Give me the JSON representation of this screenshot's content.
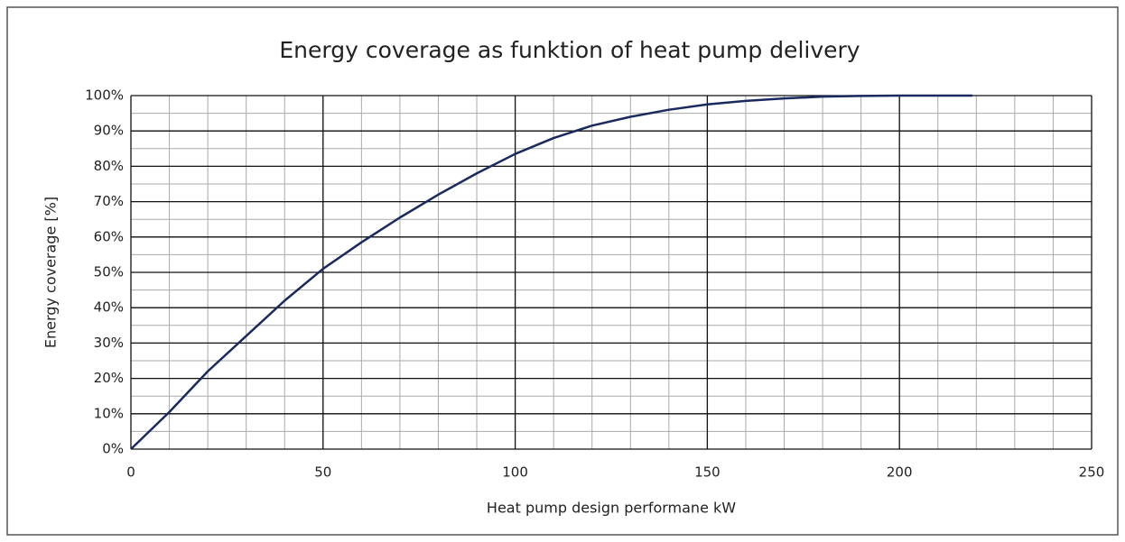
{
  "chart_data": {
    "type": "line",
    "title": "Energy coverage as funktion of heat pump delivery",
    "xlabel": "Heat pump design performane kW",
    "ylabel": "Energy coverage [%]",
    "x": [
      0,
      10,
      20,
      30,
      40,
      50,
      60,
      70,
      80,
      90,
      100,
      110,
      120,
      130,
      140,
      150,
      160,
      170,
      180,
      190,
      200,
      210,
      219
    ],
    "series": [
      {
        "color": "#1a2a5e",
        "values": [
          0,
          10.5,
          22,
          32,
          42,
          51,
          58.5,
          65.5,
          72,
          78,
          83.5,
          88,
          91.5,
          94,
          96,
          97.5,
          98.5,
          99.2,
          99.7,
          99.9,
          100,
          100,
          100
        ]
      }
    ],
    "xlim": [
      0,
      250
    ],
    "xticks": [
      0,
      50,
      100,
      150,
      200,
      250
    ],
    "ylim": [
      0,
      100
    ],
    "yticks": [
      {
        "value": 0,
        "label": "0%"
      },
      {
        "value": 10,
        "label": "10%"
      },
      {
        "value": 20,
        "label": "20%"
      },
      {
        "value": 30,
        "label": "30%"
      },
      {
        "value": 40,
        "label": "40%"
      },
      {
        "value": 50,
        "label": "50%"
      },
      {
        "value": 60,
        "label": "60%"
      },
      {
        "value": 70,
        "label": "70%"
      },
      {
        "value": 80,
        "label": "80%"
      },
      {
        "value": 90,
        "label": "90%"
      },
      {
        "value": 100,
        "label": "100%"
      }
    ],
    "grid": true,
    "minor_grid_step": {
      "x": 10,
      "y": 5
    }
  }
}
